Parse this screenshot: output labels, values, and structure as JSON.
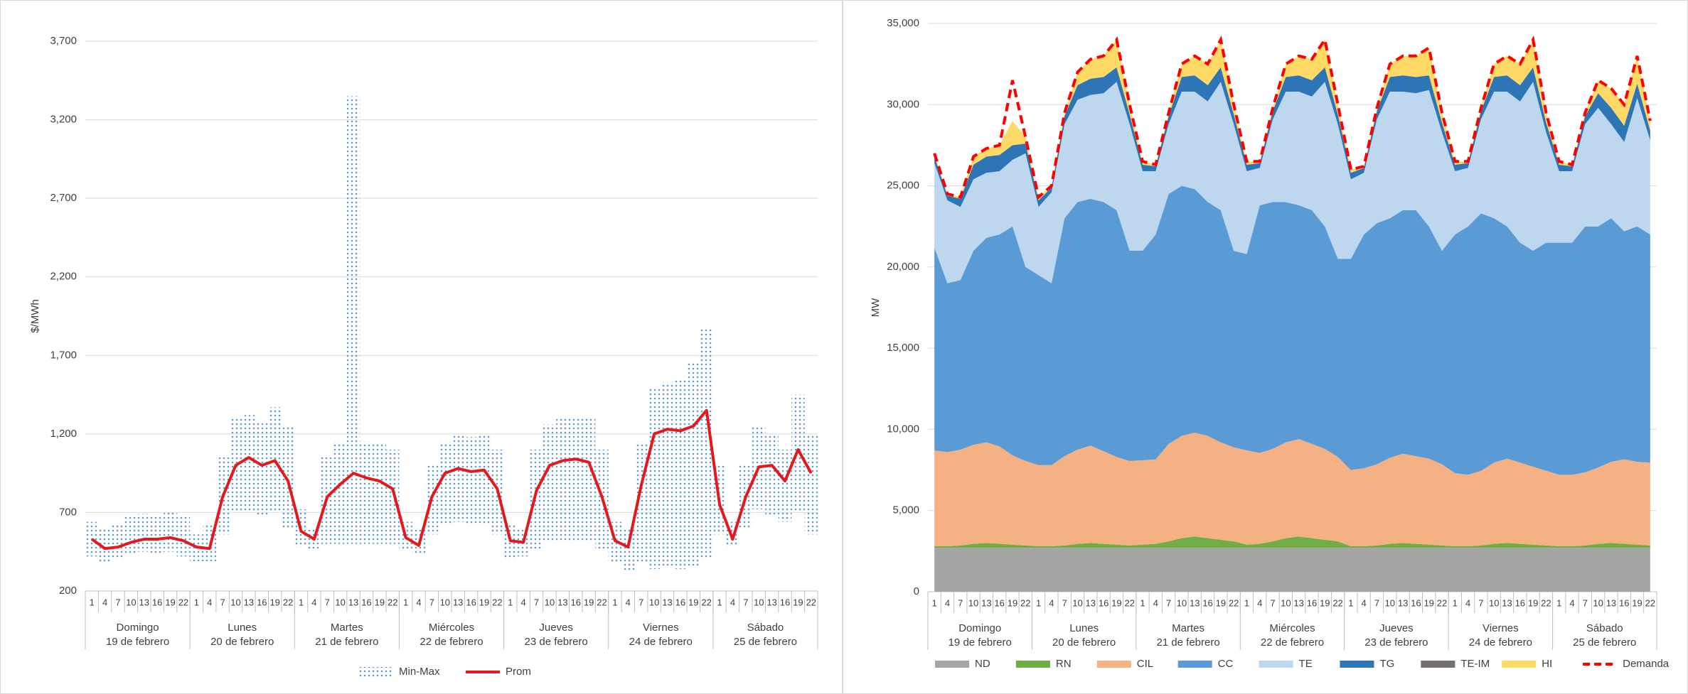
{
  "chart_data": [
    {
      "type": "range-line",
      "y_label": "$/MWh",
      "categories": [
        "1",
        "4",
        "7",
        "10",
        "13",
        "16",
        "19",
        "22",
        "1",
        "4",
        "7",
        "10",
        "13",
        "16",
        "19",
        "22",
        "1",
        "4",
        "7",
        "10",
        "13",
        "16",
        "19",
        "22",
        "1",
        "4",
        "7",
        "10",
        "13",
        "16",
        "19",
        "22",
        "1",
        "4",
        "7",
        "10",
        "13",
        "16",
        "19",
        "22",
        "1",
        "4",
        "7",
        "10",
        "13",
        "16",
        "19",
        "22",
        "1",
        "4",
        "7",
        "10",
        "13",
        "16",
        "19",
        "22"
      ],
      "groups": [
        {
          "day": "Domingo",
          "date": "19 de febrero"
        },
        {
          "day": "Lunes",
          "date": "20 de febrero"
        },
        {
          "day": "Martes",
          "date": "21 de febrero"
        },
        {
          "day": "Miércoles",
          "date": "22 de febrero"
        },
        {
          "day": "Jueves",
          "date": "23 de febrero"
        },
        {
          "day": "Viernes",
          "date": "24 de febrero"
        },
        {
          "day": "Sábado",
          "date": "25 de febrero"
        }
      ],
      "ylim": [
        200,
        3700
      ],
      "yticks": [
        200,
        700,
        {
          "value": 1200,
          "label": "1,200"
        },
        {
          "value": 1700,
          "label": "1,700"
        },
        {
          "value": 2200,
          "label": "2,200"
        },
        {
          "value": 2700,
          "label": "2,700"
        },
        {
          "value": 3200,
          "label": "3,200"
        },
        {
          "value": 3700,
          "label": "3,700"
        }
      ],
      "grid": true,
      "series": [
        {
          "name": "Min-Max",
          "color": "#5b9bd5",
          "min": [
            420,
            380,
            400,
            430,
            450,
            440,
            450,
            420,
            390,
            390,
            560,
            700,
            700,
            680,
            700,
            600,
            480,
            460,
            500,
            500,
            500,
            500,
            500,
            500,
            460,
            440,
            560,
            620,
            640,
            620,
            620,
            560,
            400,
            420,
            460,
            520,
            520,
            520,
            520,
            460,
            380,
            330,
            380,
            340,
            350,
            340,
            350,
            400,
            560,
            480,
            600,
            720,
            680,
            640,
            700,
            560
          ],
          "max": [
            640,
            600,
            620,
            680,
            690,
            680,
            700,
            680,
            560,
            620,
            1050,
            1300,
            1320,
            1280,
            1370,
            1250,
            720,
            600,
            1050,
            1150,
            3350,
            1150,
            1140,
            1100,
            640,
            590,
            1000,
            1150,
            1200,
            1180,
            1200,
            1100,
            630,
            600,
            1100,
            1260,
            1300,
            1300,
            1310,
            1100,
            640,
            600,
            1150,
            1500,
            1530,
            1550,
            1650,
            1870,
            1000,
            640,
            1000,
            1250,
            1200,
            1100,
            1450,
            1200
          ]
        },
        {
          "name": "Prom",
          "color": "#e3191c",
          "values": [
            530,
            470,
            480,
            510,
            530,
            530,
            540,
            520,
            480,
            470,
            800,
            1000,
            1050,
            1000,
            1030,
            900,
            580,
            530,
            800,
            880,
            950,
            920,
            900,
            850,
            540,
            490,
            800,
            950,
            980,
            960,
            970,
            850,
            520,
            510,
            840,
            1000,
            1030,
            1040,
            1020,
            800,
            520,
            480,
            870,
            1200,
            1230,
            1220,
            1250,
            1350,
            750,
            530,
            800,
            990,
            1000,
            900,
            1100,
            950
          ]
        }
      ]
    },
    {
      "type": "stacked-area",
      "y_label": "MW",
      "categories": [
        "1",
        "4",
        "7",
        "10",
        "13",
        "16",
        "19",
        "22",
        "1",
        "4",
        "7",
        "10",
        "13",
        "16",
        "19",
        "22",
        "1",
        "4",
        "7",
        "10",
        "13",
        "16",
        "19",
        "22",
        "1",
        "4",
        "7",
        "10",
        "13",
        "16",
        "19",
        "22",
        "1",
        "4",
        "7",
        "10",
        "13",
        "16",
        "19",
        "22",
        "1",
        "4",
        "7",
        "10",
        "13",
        "16",
        "19",
        "22",
        "1",
        "4",
        "7",
        "10",
        "13",
        "16",
        "19",
        "22"
      ],
      "groups": [
        {
          "day": "Domingo",
          "date": "19 de febrero"
        },
        {
          "day": "Lunes",
          "date": "20 de febrero"
        },
        {
          "day": "Martes",
          "date": "21 de febrero"
        },
        {
          "day": "Miércoles",
          "date": "22 de febrero"
        },
        {
          "day": "Jueves",
          "date": "23 de febrero"
        },
        {
          "day": "Viernes",
          "date": "24 de febrero"
        },
        {
          "day": "Sábado",
          "date": "25 de febrero"
        }
      ],
      "ylim": [
        0,
        35000
      ],
      "yticks": [
        0,
        {
          "value": 5000,
          "label": "5,000"
        },
        {
          "value": 10000,
          "label": "10,000"
        },
        {
          "value": 15000,
          "label": "15,000"
        },
        {
          "value": 20000,
          "label": "20,000"
        },
        {
          "value": 25000,
          "label": "25,000"
        },
        {
          "value": 30000,
          "label": "30,000"
        },
        {
          "value": 35000,
          "label": "35,000"
        }
      ],
      "grid": true,
      "series": [
        {
          "name": "ND",
          "color": "#a5a5a5",
          "values": [
            2700,
            2700,
            2700,
            2700,
            2700,
            2700,
            2700,
            2700,
            2700,
            2700,
            2700,
            2700,
            2700,
            2700,
            2700,
            2700,
            2700,
            2700,
            2700,
            2700,
            2700,
            2700,
            2700,
            2700,
            2700,
            2700,
            2700,
            2700,
            2700,
            2700,
            2700,
            2700,
            2700,
            2700,
            2700,
            2700,
            2700,
            2700,
            2700,
            2700,
            2700,
            2700,
            2700,
            2700,
            2700,
            2700,
            2700,
            2700,
            2700,
            2700,
            2700,
            2700,
            2700,
            2700,
            2700,
            2700
          ]
        },
        {
          "name": "RN",
          "color": "#70ad47",
          "values": [
            100,
            100,
            150,
            250,
            300,
            250,
            200,
            150,
            100,
            100,
            150,
            250,
            300,
            250,
            200,
            150,
            200,
            250,
            400,
            600,
            700,
            600,
            500,
            400,
            200,
            250,
            400,
            600,
            700,
            600,
            500,
            400,
            100,
            100,
            150,
            250,
            300,
            250,
            200,
            150,
            100,
            100,
            150,
            250,
            300,
            250,
            200,
            150,
            100,
            100,
            150,
            250,
            300,
            250,
            200,
            150
          ]
        },
        {
          "name": "CIL",
          "color": "#f4b183",
          "values": [
            5900,
            5800,
            5900,
            6100,
            6200,
            6000,
            5500,
            5200,
            5000,
            5000,
            5500,
            5800,
            6000,
            5700,
            5400,
            5200,
            5200,
            5200,
            6000,
            6300,
            6400,
            6300,
            6000,
            5800,
            5800,
            5600,
            5700,
            5900,
            6000,
            5800,
            5600,
            5200,
            4700,
            4800,
            5000,
            5300,
            5500,
            5400,
            5300,
            5000,
            4500,
            4400,
            4600,
            5000,
            5200,
            5000,
            4800,
            4600,
            4400,
            4400,
            4500,
            4700,
            5000,
            5200,
            5100,
            5100
          ]
        },
        {
          "name": "CC",
          "color": "#5b9bd5",
          "values": [
            12500,
            10400,
            10450,
            11950,
            12600,
            13050,
            14100,
            11950,
            11700,
            11200,
            14650,
            15250,
            15200,
            15350,
            15200,
            12950,
            12900,
            13850,
            15400,
            15400,
            15000,
            14400,
            14300,
            12100,
            12100,
            15250,
            15200,
            14800,
            14400,
            14400,
            13700,
            12200,
            13000,
            14400,
            14850,
            14750,
            15000,
            15150,
            14300,
            13150,
            14700,
            15300,
            15850,
            15050,
            14300,
            13550,
            13300,
            14050,
            14300,
            14300,
            15150,
            14850,
            15000,
            14050,
            14500,
            14050
          ]
        },
        {
          "name": "TE",
          "color": "#bdd7ee",
          "values": [
            5200,
            5100,
            4500,
            4400,
            4000,
            3900,
            4100,
            7000,
            4200,
            5600,
            5800,
            6300,
            6400,
            6700,
            7900,
            7800,
            4900,
            3900,
            4300,
            5800,
            6000,
            6200,
            7900,
            7800,
            5100,
            2300,
            5100,
            6800,
            7000,
            7000,
            8900,
            8300,
            4900,
            3800,
            6400,
            7800,
            7300,
            7200,
            8400,
            7300,
            3900,
            3600,
            5800,
            7800,
            8300,
            8700,
            10400,
            6800,
            4400,
            4400,
            6300,
            7300,
            5800,
            5500,
            7900,
            5800
          ]
        },
        {
          "name": "TG",
          "color": "#2e75b6",
          "values": [
            400,
            300,
            500,
            900,
            1000,
            1000,
            900,
            600,
            400,
            300,
            500,
            900,
            1000,
            1000,
            900,
            600,
            400,
            300,
            500,
            900,
            1000,
            1000,
            900,
            600,
            400,
            300,
            500,
            900,
            1000,
            1000,
            900,
            600,
            400,
            300,
            500,
            900,
            1000,
            1000,
            900,
            600,
            400,
            300,
            500,
            900,
            1000,
            1000,
            900,
            600,
            400,
            300,
            500,
            900,
            1000,
            1000,
            900,
            600
          ]
        },
        {
          "name": "TE-IM",
          "color": "#767171",
          "values": [
            0,
            0,
            0,
            0,
            0,
            0,
            0,
            0,
            0,
            0,
            0,
            0,
            0,
            0,
            0,
            0,
            0,
            0,
            0,
            0,
            0,
            0,
            0,
            0,
            0,
            0,
            0,
            0,
            0,
            0,
            0,
            0,
            0,
            0,
            0,
            0,
            0,
            0,
            0,
            0,
            0,
            0,
            0,
            0,
            0,
            0,
            0,
            0,
            0,
            0,
            0,
            0,
            0,
            0,
            0,
            0
          ]
        },
        {
          "name": "HI",
          "color": "#ffd966",
          "values": [
            200,
            100,
            100,
            500,
            500,
            600,
            1500,
            400,
            200,
            100,
            200,
            800,
            1200,
            1300,
            1700,
            600,
            200,
            100,
            200,
            800,
            1200,
            1300,
            1700,
            600,
            200,
            100,
            200,
            800,
            1200,
            1300,
            1700,
            600,
            200,
            100,
            200,
            800,
            1200,
            1300,
            1700,
            600,
            200,
            100,
            200,
            800,
            1200,
            1300,
            1700,
            600,
            200,
            100,
            200,
            800,
            1200,
            1300,
            1700,
            600
          ]
        },
        {
          "name": "Demanda",
          "color": "#ff0000",
          "type": "line",
          "dashed": true,
          "values": [
            27000,
            24500,
            24300,
            26800,
            27300,
            27500,
            31500,
            28000,
            24300,
            25000,
            29500,
            32000,
            32800,
            33000,
            34000,
            30000,
            26500,
            26300,
            29500,
            32500,
            33000,
            32500,
            34000,
            30000,
            26500,
            26500,
            29800,
            32500,
            33000,
            32800,
            34000,
            30000,
            26000,
            26200,
            29800,
            32500,
            33000,
            33000,
            33500,
            29500,
            26500,
            26500,
            29800,
            32500,
            33000,
            32500,
            34000,
            29500,
            26500,
            26300,
            29500,
            31500,
            31000,
            30000,
            33000,
            29000
          ]
        }
      ]
    }
  ]
}
